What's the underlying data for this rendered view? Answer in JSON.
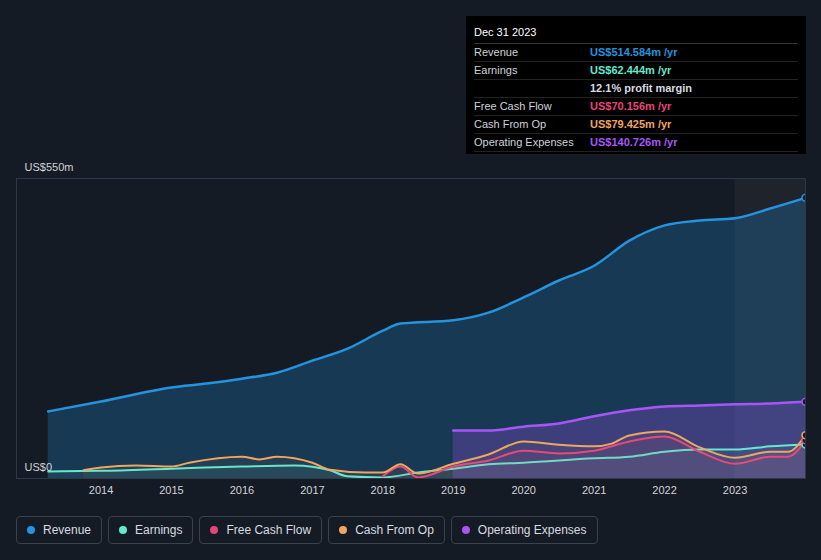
{
  "chart_data": {
    "type": "line",
    "xlim": [
      2012.8,
      2024
    ],
    "xticks": [
      2014,
      2015,
      2016,
      2017,
      2018,
      2019,
      2020,
      2021,
      2022,
      2023
    ],
    "ylim": [
      0,
      550
    ],
    "yticks": [
      {
        "value": 0,
        "label": "US$0"
      },
      {
        "value": 550,
        "label": "US$550m"
      }
    ],
    "grid": true,
    "legend": "bottom",
    "highlight_x": [
      2023,
      2024
    ],
    "series": [
      {
        "name": "Revenue",
        "type": "area",
        "color": "#2394df",
        "x": [
          2013.25,
          2014,
          2015,
          2015.5,
          2016,
          2016.5,
          2017,
          2017.5,
          2018,
          2018.25,
          2019,
          2019.5,
          2020,
          2020.5,
          2021,
          2021.5,
          2022,
          2022.5,
          2023,
          2023.5,
          2024
        ],
        "values": [
          123,
          141,
          167,
          174,
          183,
          194,
          216,
          238,
          271,
          284,
          290,
          304,
          332,
          363,
          390,
          436,
          464,
          473,
          477,
          495,
          514.584
        ]
      },
      {
        "name": "Earnings",
        "type": "line",
        "color": "#64e8ce",
        "x": [
          2013.25,
          2014,
          2015,
          2016,
          2016.75,
          2017.25,
          2017.5,
          2018,
          2018.5,
          2019,
          2019.5,
          2020,
          2021,
          2021.5,
          2022,
          2022.5,
          2023,
          2023.5,
          2024
        ],
        "values": [
          13,
          14,
          18,
          22,
          24,
          15,
          4,
          2,
          11,
          18,
          26,
          29,
          37,
          40,
          49,
          53,
          53,
          59,
          62.444
        ]
      },
      {
        "name": "Free Cash Flow",
        "type": "line",
        "color": "#e6457a",
        "x": [
          2018,
          2018.25,
          2018.5,
          2019,
          2019.5,
          2020,
          2020.5,
          2021,
          2021.5,
          2022,
          2022.5,
          2023,
          2023.5,
          2023.75,
          2024
        ],
        "values": [
          4,
          22,
          2,
          22,
          33,
          51,
          46,
          51,
          68,
          77,
          49,
          27,
          40,
          40,
          70.156
        ]
      },
      {
        "name": "Cash From Op",
        "type": "line",
        "color": "#f0a560",
        "x": [
          2013.75,
          2014,
          2014.5,
          2015,
          2015.25,
          2016,
          2016.25,
          2016.5,
          2017,
          2017.25,
          2017.75,
          2018,
          2018.25,
          2018.5,
          2019,
          2019.5,
          2020,
          2020.5,
          2021,
          2021.25,
          2021.5,
          2022,
          2022.5,
          2023,
          2023.5,
          2023.75,
          2024
        ],
        "values": [
          15,
          20,
          24,
          22,
          29,
          40,
          35,
          40,
          29,
          16,
          11,
          11,
          26,
          9,
          27,
          44,
          68,
          62,
          59,
          64,
          79,
          86,
          57,
          38,
          49,
          49,
          79.425
        ]
      },
      {
        "name": "Operating Expenses",
        "type": "area",
        "color": "#a855f7",
        "x": [
          2019,
          2019.5,
          2020,
          2020.5,
          2021,
          2021.5,
          2022,
          2022.5,
          2023,
          2023.5,
          2024
        ],
        "values": [
          88,
          88,
          95,
          101,
          114,
          125,
          132,
          134,
          136,
          137.5,
          140.726
        ]
      }
    ],
    "tooltip": {
      "title": "Dec 31 2023",
      "rows": [
        {
          "label": "Revenue",
          "value": "US$514.584m /yr"
        },
        {
          "label": "Earnings",
          "value": "US$62.444m /yr"
        },
        {
          "label": "",
          "value": "12.1% profit margin"
        },
        {
          "label": "Free Cash Flow",
          "value": "US$70.156m /yr"
        },
        {
          "label": "Cash From Op",
          "value": "US$79.425m /yr"
        },
        {
          "label": "Operating Expenses",
          "value": "US$140.726m /yr"
        }
      ]
    }
  }
}
